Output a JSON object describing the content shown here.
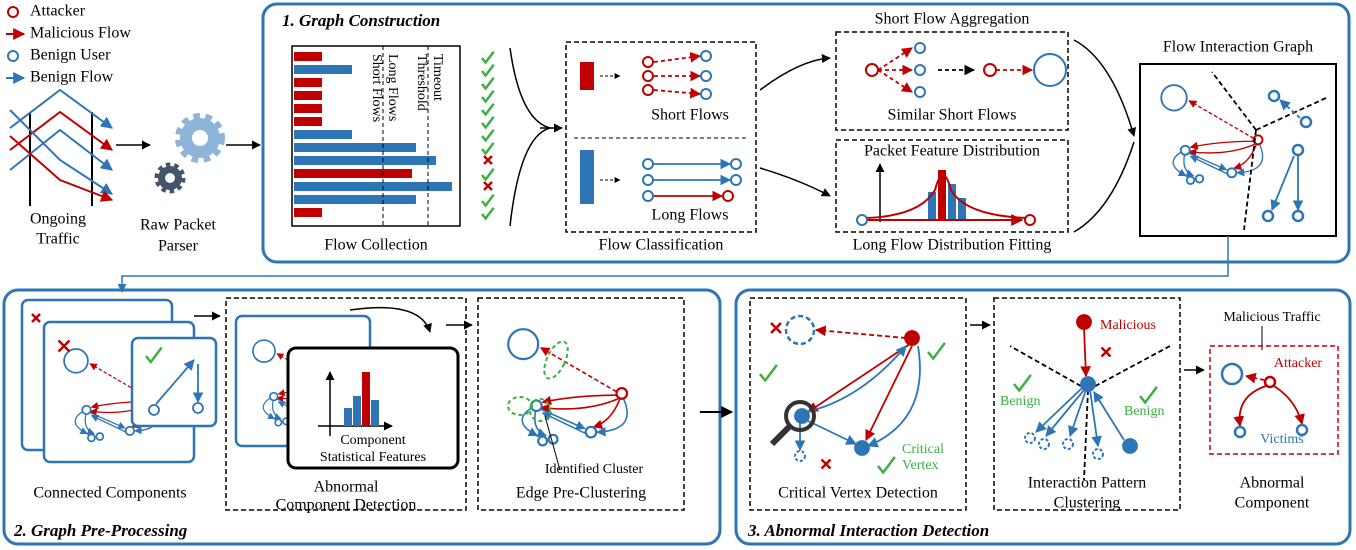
{
  "legend": {
    "attacker": "Attacker",
    "malicious_flow": "Malicious Flow",
    "benign_user": "Benign User",
    "benign_flow": "Benign Flow"
  },
  "input": {
    "ongoing_traffic": [
      "Ongoing",
      "Traffic"
    ],
    "raw_packet_parser": [
      "Raw Packet",
      "Parser"
    ]
  },
  "graph_construction": {
    "title": "1. Graph Construction",
    "flow_collection": {
      "timeout_threshold": [
        "Timeout",
        "Threshold"
      ],
      "long_flows": "Long Flows",
      "short_flows": "Short Flows",
      "caption": "Flow Collection"
    },
    "flow_classification": {
      "short_flows": "Short Flows",
      "long_flows": "Long Flows",
      "caption": "Flow Classification"
    },
    "short_flow_aggregation": {
      "title": "Short Flow Aggregation",
      "label": "Similar Short Flows"
    },
    "long_flow_fitting": {
      "title": "Packet Feature Distribution",
      "caption": "Long Flow Distribution Fitting"
    },
    "flow_interaction_graph": {
      "title": "Flow Interaction Graph"
    }
  },
  "graph_preprocessing": {
    "title": "2. Graph Pre-Processing",
    "connected_components": "Connected Components",
    "abnormal_component_detection": {
      "caption": [
        "Abnormal",
        "Component Detection"
      ],
      "features": [
        "Component",
        "Statistical Features"
      ]
    },
    "edge_pre_clustering": {
      "caption": "Edge Pre-Clustering",
      "identified_cluster": "Identified Cluster"
    }
  },
  "abnormal_interaction_detection": {
    "title": "3. Abnormal Interaction Detection",
    "critical_vertex_detection": {
      "caption": "Critical Vertex Detection",
      "critical_vertex": [
        "Critical",
        "Vertex"
      ]
    },
    "interaction_pattern_clustering": {
      "caption": [
        "Interaction Pattern",
        "Clustering"
      ],
      "malicious": "Malicious",
      "benign_left": "Benign",
      "benign_right": "Benign"
    },
    "abnormal_component": {
      "malicious_traffic": "Malicious Traffic",
      "attacker": "Attacker",
      "victims": "Victims",
      "caption": [
        "Abnormal",
        "Component"
      ]
    }
  }
}
